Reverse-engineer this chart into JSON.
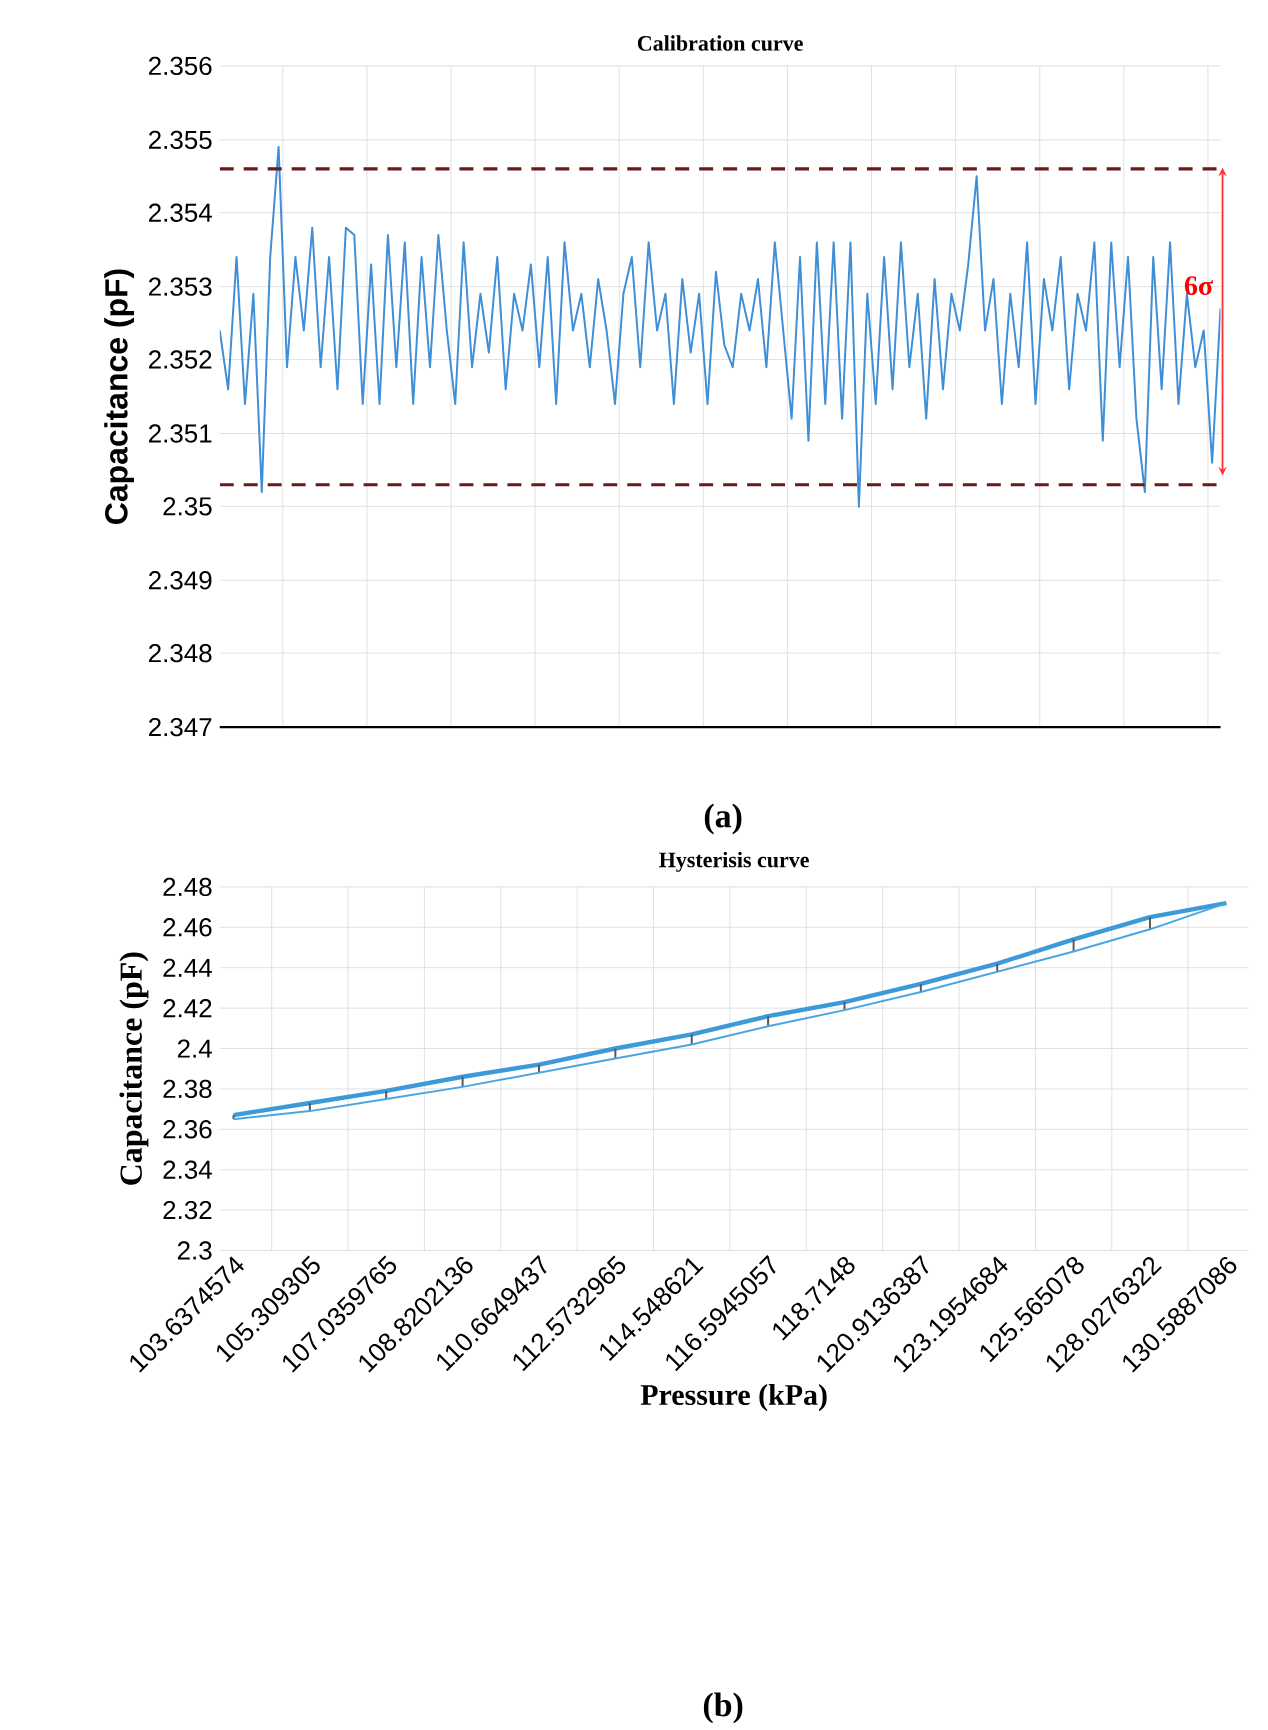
{
  "chart_data": [
    {
      "type": "line",
      "title": "Calibration curve",
      "ylabel": "Capacitance (pF)",
      "categories": [
        null,
        null,
        null,
        null,
        null,
        null,
        null,
        null,
        null,
        null,
        null,
        null,
        null,
        null,
        null,
        null,
        null,
        null,
        null,
        null,
        null,
        null,
        null,
        null,
        null,
        null,
        null,
        null,
        null,
        null,
        null,
        null,
        null,
        null,
        null,
        null,
        null,
        null,
        null,
        null,
        null,
        null,
        null,
        null,
        null,
        null,
        null,
        null,
        null,
        null,
        null,
        null,
        null,
        null,
        null,
        null,
        null,
        null,
        null,
        null,
        null,
        null,
        null,
        null,
        null,
        null,
        null,
        null,
        null,
        null,
        null,
        null,
        null,
        null,
        null,
        null,
        null,
        null,
        null,
        null,
        null,
        null,
        null,
        null,
        null,
        null,
        null,
        null,
        null,
        null,
        null,
        null,
        null,
        null,
        null,
        null,
        null,
        null,
        null,
        null,
        null,
        null,
        null,
        null,
        null,
        null,
        null,
        null,
        null,
        null,
        null,
        null,
        null,
        null,
        null,
        null,
        null,
        null,
        null,
        null
      ],
      "values": [
        2.3524,
        2.3516,
        2.3534,
        2.3514,
        2.3529,
        2.3502,
        2.3534,
        2.3549,
        2.3519,
        2.3534,
        2.3524,
        2.3538,
        2.3519,
        2.3534,
        2.3516,
        2.3538,
        2.3537,
        2.3514,
        2.3533,
        2.3514,
        2.3537,
        2.3519,
        2.3536,
        2.3514,
        2.3534,
        2.3519,
        2.3537,
        2.3524,
        2.3514,
        2.3536,
        2.3519,
        2.3529,
        2.3521,
        2.3534,
        2.3516,
        2.3529,
        2.3524,
        2.3533,
        2.3519,
        2.3534,
        2.3514,
        2.3536,
        2.3524,
        2.3529,
        2.3519,
        2.3531,
        2.3524,
        2.3514,
        2.3529,
        2.3534,
        2.3519,
        2.3536,
        2.3524,
        2.3529,
        2.3514,
        2.3531,
        2.3521,
        2.3529,
        2.3514,
        2.3532,
        2.3522,
        2.3519,
        2.3529,
        2.3524,
        2.3531,
        2.3519,
        2.3536,
        2.3524,
        2.3512,
        2.3534,
        2.3509,
        2.3536,
        2.3514,
        2.3536,
        2.3512,
        2.3536,
        2.35,
        2.3529,
        2.3514,
        2.3534,
        2.3516,
        2.3536,
        2.3519,
        2.3529,
        2.3512,
        2.3531,
        2.3516,
        2.3529,
        2.3524,
        2.3533,
        2.3545,
        2.3524,
        2.3531,
        2.3514,
        2.3529,
        2.3519,
        2.3536,
        2.3514,
        2.3531,
        2.3524,
        2.3534,
        2.3516,
        2.3529,
        2.3524,
        2.3536,
        2.3509,
        2.3536,
        2.3519,
        2.3534,
        2.3512,
        2.3502,
        2.3534,
        2.3516,
        2.3536,
        2.3514,
        2.3529,
        2.3519,
        2.3524,
        2.3506,
        2.3527
      ],
      "color": "#3f8fd6",
      "ylim": [
        2.347,
        2.356
      ],
      "yticks": [
        2.347,
        2.348,
        2.349,
        2.35,
        2.351,
        2.352,
        2.353,
        2.354,
        2.355,
        2.356
      ],
      "ref_lines": [
        {
          "axis": "y",
          "value": 2.3546,
          "color": "#6b1a1a",
          "line_style": "dashed"
        },
        {
          "axis": "y",
          "value": 2.3503,
          "color": "#6b1a1a",
          "line_style": "dashed"
        }
      ],
      "annotations": [
        "6σ",
        "(a)"
      ],
      "grid": true
    },
    {
      "type": "line",
      "title": "Hysterisis curve",
      "xlabel": "Pressure (kPa)",
      "ylabel": "Capacitance (pF)",
      "categories": [
        "103.6374574",
        "105.309305",
        "107.0359765",
        "108.8202136",
        "110.6649437",
        "112.5732965",
        "114.548621",
        "116.5945057",
        "118.7148",
        "120.9136387",
        "123.1954684",
        "125.565078",
        "128.0276322",
        "130.5887086"
      ],
      "series": [
        {
          "color": "#3d9ad8",
          "values": [
            2.367,
            2.373,
            2.379,
            2.386,
            2.392,
            2.4,
            2.407,
            2.416,
            2.423,
            2.432,
            2.442,
            2.454,
            2.465,
            2.472
          ],
          "errors": [
            [
              2.365,
              2.367
            ],
            [
              2.369,
              2.373
            ],
            [
              2.375,
              2.379
            ],
            [
              2.381,
              2.386
            ],
            [
              2.388,
              2.392
            ],
            [
              2.395,
              2.4
            ],
            [
              2.402,
              2.407
            ],
            [
              2.411,
              2.416
            ],
            [
              2.419,
              2.423
            ],
            [
              2.428,
              2.432
            ],
            [
              2.438,
              2.442
            ],
            [
              2.448,
              2.454
            ],
            [
              2.459,
              2.465
            ],
            null
          ]
        },
        {
          "color": "#4aa6e0",
          "values": [
            2.365,
            2.369,
            2.375,
            2.381,
            2.388,
            2.395,
            2.402,
            2.411,
            2.419,
            2.428,
            2.438,
            2.448,
            2.459,
            2.472
          ]
        }
      ],
      "ylim": [
        2.3,
        2.48
      ],
      "yticks": [
        2.3,
        2.32,
        2.34,
        2.36,
        2.38,
        2.4,
        2.42,
        2.44,
        2.46,
        2.48
      ],
      "annotations": [
        "(b)"
      ],
      "grid": true
    }
  ]
}
